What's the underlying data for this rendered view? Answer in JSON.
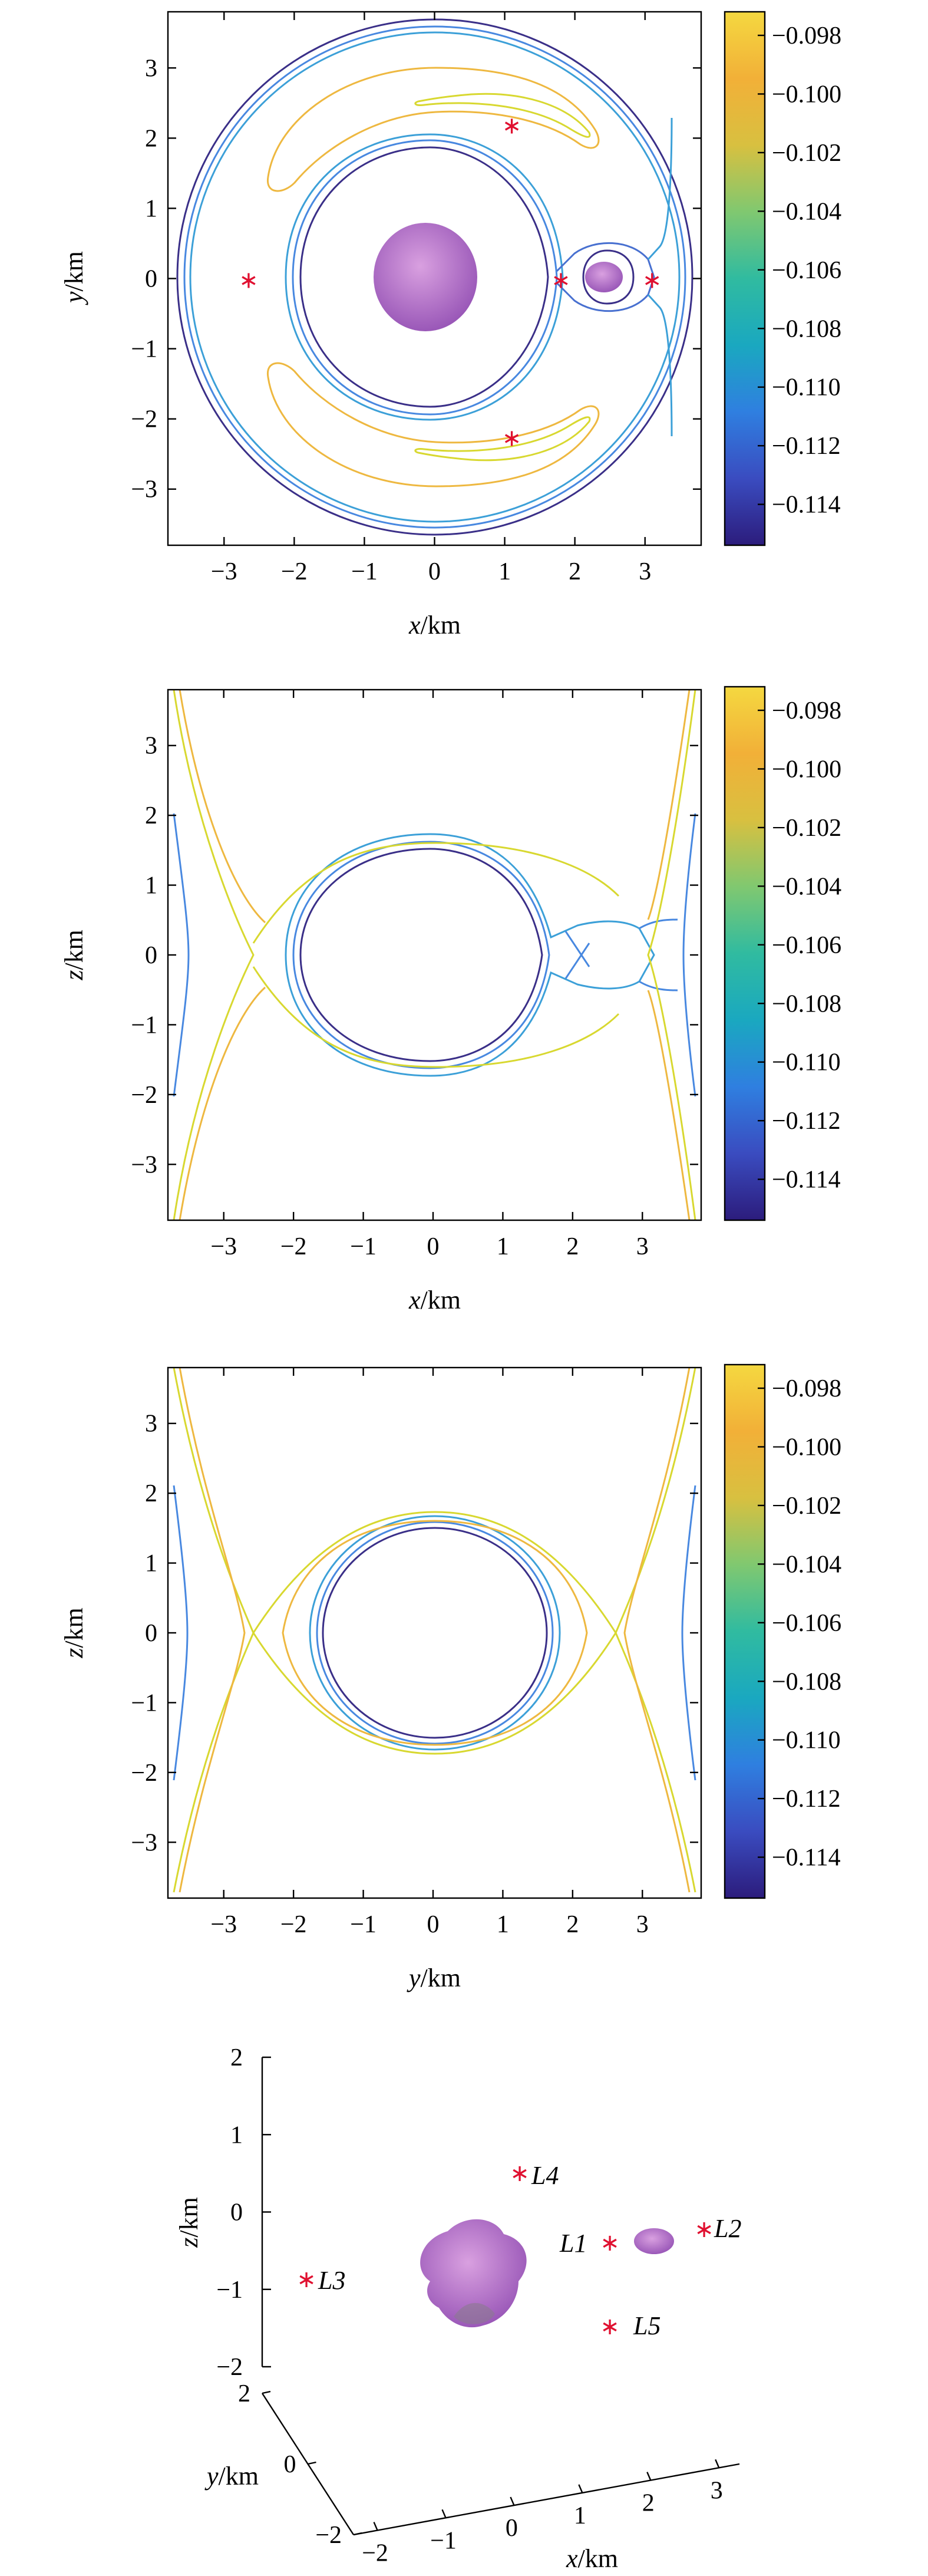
{
  "colors": {
    "c098": "#d8d830",
    "c100": "#eeb840",
    "c102": "#a8c860",
    "c104": "#48b8a8",
    "c108": "#3ca0d8",
    "c110": "#4888e0",
    "c112": "#4870d0",
    "c114": "#3a2f88",
    "lagrange": "#e01030",
    "body": "#b070c8"
  },
  "colorbar": {
    "ticks": [
      "−0.098",
      "−0.100",
      "−0.102",
      "−0.104",
      "−0.106",
      "−0.108",
      "−0.110",
      "−0.112",
      "−0.114"
    ],
    "stops": [
      "#2c1c7c",
      "#3a4cc0",
      "#2f7fe0",
      "#1aa8c0",
      "#30bba0",
      "#80c870",
      "#d8c040",
      "#f2b038",
      "#f4d840"
    ]
  },
  "chart_data": [
    {
      "type": "contour",
      "view": "xy",
      "xlabel": {
        "var": "x",
        "unit": "/km"
      },
      "ylabel": {
        "var": "y",
        "unit": "/km"
      },
      "xlim": [
        -3.8,
        3.8
      ],
      "ylim": [
        -3.8,
        3.8
      ],
      "xticks": [
        "−3",
        "−2",
        "−1",
        "0",
        "1",
        "2",
        "3"
      ],
      "yticks": [
        "3",
        "2",
        "1",
        "0",
        "−1",
        "−2",
        "−3"
      ],
      "equilibrium_points": [
        {
          "x": 1.8,
          "y": 0
        },
        {
          "x": 3.1,
          "y": 0
        },
        {
          "x": -2.65,
          "y": 0
        },
        {
          "x": 1.1,
          "y": 2.2
        },
        {
          "x": 1.1,
          "y": -2.25
        }
      ]
    },
    {
      "type": "contour",
      "view": "xz",
      "xlabel": {
        "var": "x",
        "unit": "/km"
      },
      "ylabel": {
        "var": "z",
        "unit": "/km"
      },
      "xlim": [
        -3.8,
        3.8
      ],
      "ylim": [
        -3.8,
        3.8
      ],
      "xticks": [
        "−3",
        "−2",
        "−1",
        "0",
        "1",
        "2",
        "3"
      ],
      "yticks": [
        "3",
        "2",
        "1",
        "0",
        "−1",
        "−2",
        "−3"
      ]
    },
    {
      "type": "contour",
      "view": "yz",
      "xlabel": {
        "var": "y",
        "unit": "/km"
      },
      "ylabel": {
        "var": "z",
        "unit": "/km"
      },
      "xlim": [
        -3.8,
        3.8
      ],
      "ylim": [
        -3.8,
        3.8
      ],
      "xticks": [
        "−3",
        "−2",
        "−1",
        "0",
        "1",
        "2",
        "3"
      ],
      "yticks": [
        "3",
        "2",
        "1",
        "0",
        "−1",
        "−2",
        "−3"
      ]
    },
    {
      "type": "scatter3d",
      "xlabel": {
        "var": "x",
        "unit": "/km"
      },
      "ylabel": {
        "var": "y",
        "unit": "/km"
      },
      "zlabel": {
        "var": "z",
        "unit": "/km"
      },
      "xticks": [
        "−2",
        "−1",
        "0",
        "1",
        "2",
        "3"
      ],
      "yticks": [
        "2",
        "0",
        "−2"
      ],
      "zticks": [
        "2",
        "1",
        "0",
        "−1",
        "−2"
      ],
      "points": [
        {
          "label": "L1",
          "x": 1.8,
          "y": 0,
          "z": 0
        },
        {
          "label": "L2",
          "x": 3.1,
          "y": 0,
          "z": 0
        },
        {
          "label": "L3",
          "x": -2.65,
          "y": 0,
          "z": 0
        },
        {
          "label": "L4",
          "x": 1.1,
          "y": 2.2,
          "z": 0
        },
        {
          "label": "L5",
          "x": 1.1,
          "y": -2.25,
          "z": 0
        }
      ]
    }
  ]
}
